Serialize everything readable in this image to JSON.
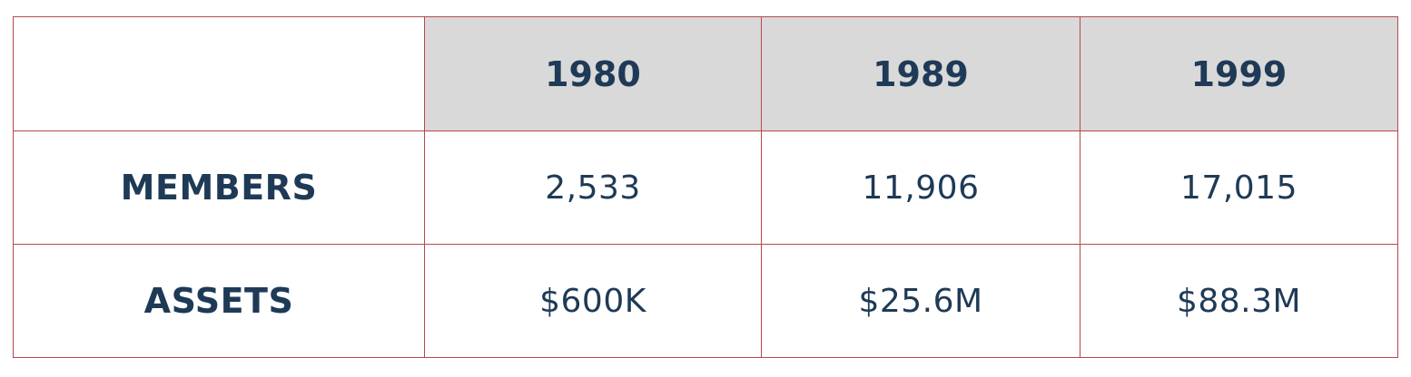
{
  "table": {
    "columns": [
      "1980",
      "1989",
      "1999"
    ],
    "rows": [
      {
        "label": "MEMBERS",
        "cells": [
          "2,533",
          "11,906",
          "17,015"
        ]
      },
      {
        "label": "ASSETS",
        "cells": [
          "$600K",
          "$25.6M",
          "$88.3M"
        ]
      }
    ]
  }
}
